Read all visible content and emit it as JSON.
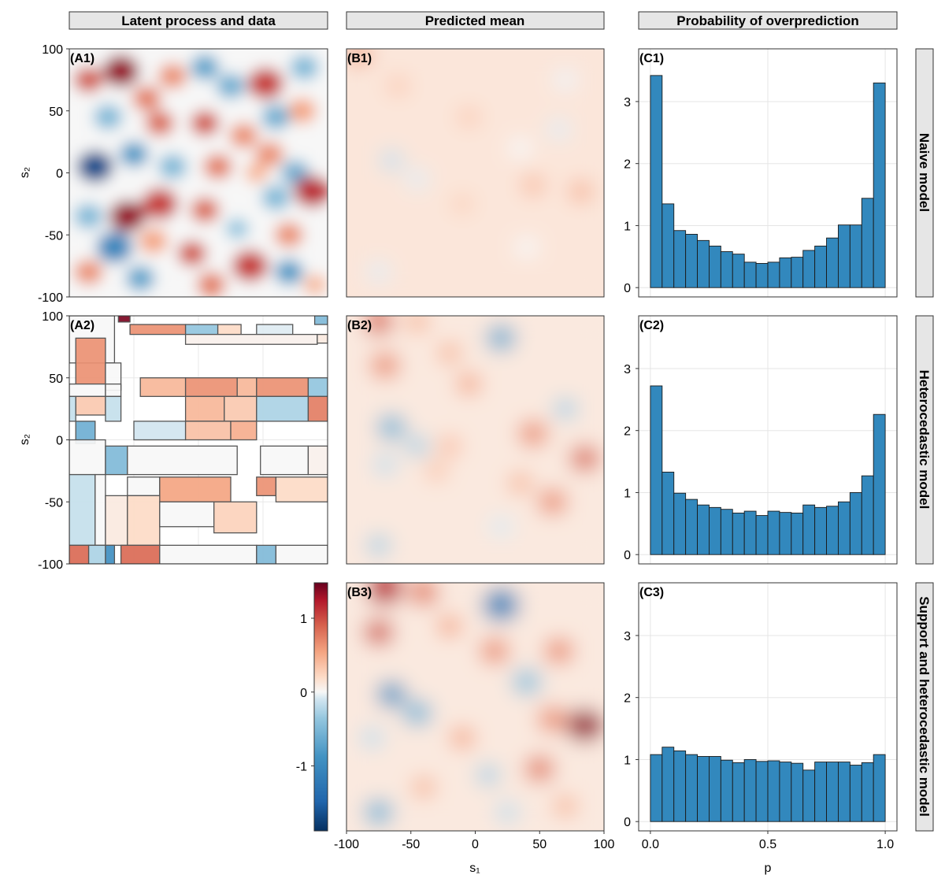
{
  "strip_titles": {
    "col1": "Latent process and data",
    "col2": "Predicted mean",
    "col3": "Probability of overprediction"
  },
  "row_titles": {
    "row1": "Naive model",
    "row2": "Heterocedastic model",
    "row3": "Support and heterocedastic model"
  },
  "panel_labels": {
    "A1": "(A1)",
    "A2": "(A2)",
    "B1": "(B1)",
    "B2": "(B2)",
    "B3": "(B3)",
    "C1": "(C1)",
    "C2": "(C2)",
    "C3": "(C3)"
  },
  "axes": {
    "s1_label": "s₁",
    "s2_label": "s₂",
    "p_label": "p",
    "spatial_ticks": [
      "-100",
      "-50",
      "0",
      "50",
      "100"
    ],
    "spatial_tick_values": [
      -100,
      -50,
      0,
      50,
      100
    ],
    "hist_y_ticks": [
      "0",
      "1",
      "2",
      "3"
    ],
    "hist_y_tick_values": [
      0,
      1,
      2,
      3
    ],
    "hist_x_ticks": [
      "0.0",
      "0.5",
      "1.0"
    ],
    "hist_x_tick_values": [
      0,
      0.5,
      1.0
    ]
  },
  "colorbar": {
    "ticks": [
      "1",
      "0",
      "-1"
    ],
    "tick_values": [
      1,
      0,
      -1
    ],
    "range": [
      -1.88,
      1.48
    ],
    "colors": {
      "neg": "#053061",
      "mid": "#f7f7f7",
      "pos": "#67001f"
    }
  },
  "colors": {
    "bar_fill": "#3288bd",
    "bar_stroke": "#1a1a1a",
    "strip_fill": "#e6e6e6"
  },
  "chart_data": [
    {
      "type": "heatmap",
      "panel": "A1",
      "title": "Latent process and data",
      "xlabel": "",
      "ylabel": "s₂",
      "xlim": [
        -100,
        100
      ],
      "ylim": [
        -100,
        100
      ],
      "colormap": "RdBu (reversed)",
      "clim": [
        -1.88,
        1.48
      ],
      "blobs": [
        {
          "x": -60,
          "y": 82,
          "v": 1.3
        },
        {
          "x": -85,
          "y": 75,
          "v": 0.9
        },
        {
          "x": -40,
          "y": 60,
          "v": 0.7
        },
        {
          "x": -20,
          "y": 78,
          "v": 0.6
        },
        {
          "x": 5,
          "y": 85,
          "v": -0.7
        },
        {
          "x": 25,
          "y": 70,
          "v": -0.6
        },
        {
          "x": 52,
          "y": 72,
          "v": 1.0
        },
        {
          "x": 82,
          "y": 85,
          "v": -0.5
        },
        {
          "x": 80,
          "y": 50,
          "v": 0.5
        },
        {
          "x": 60,
          "y": 45,
          "v": -0.6
        },
        {
          "x": -30,
          "y": 40,
          "v": 0.8
        },
        {
          "x": -70,
          "y": 45,
          "v": -0.5
        },
        {
          "x": 5,
          "y": 40,
          "v": 0.9
        },
        {
          "x": 35,
          "y": 30,
          "v": 0.6
        },
        {
          "x": -80,
          "y": 5,
          "v": -1.6
        },
        {
          "x": -50,
          "y": 15,
          "v": -0.8
        },
        {
          "x": -20,
          "y": 5,
          "v": -0.5
        },
        {
          "x": 15,
          "y": 5,
          "v": 0.7
        },
        {
          "x": 55,
          "y": 15,
          "v": 0.6
        },
        {
          "x": 75,
          "y": 0,
          "v": -0.6
        },
        {
          "x": 88,
          "y": -15,
          "v": 1.1
        },
        {
          "x": 60,
          "y": -20,
          "v": -0.5
        },
        {
          "x": -55,
          "y": -35,
          "v": 1.3
        },
        {
          "x": -30,
          "y": -25,
          "v": 1.0
        },
        {
          "x": -85,
          "y": -35,
          "v": -0.5
        },
        {
          "x": 5,
          "y": -30,
          "v": 0.8
        },
        {
          "x": 30,
          "y": -45,
          "v": -0.4
        },
        {
          "x": 70,
          "y": -50,
          "v": 0.6
        },
        {
          "x": -65,
          "y": -60,
          "v": -1.0
        },
        {
          "x": -35,
          "y": -55,
          "v": 0.5
        },
        {
          "x": -5,
          "y": -65,
          "v": 0.9
        },
        {
          "x": 40,
          "y": -75,
          "v": 1.0
        },
        {
          "x": 70,
          "y": -80,
          "v": -0.8
        },
        {
          "x": -85,
          "y": -80,
          "v": 0.6
        },
        {
          "x": -45,
          "y": -85,
          "v": -0.7
        },
        {
          "x": 10,
          "y": -90,
          "v": 0.7
        },
        {
          "x": 90,
          "y": -90,
          "v": 0.4
        },
        {
          "x": 45,
          "y": 0,
          "v": 0.4
        }
      ]
    },
    {
      "type": "heatmap",
      "panel": "A2",
      "title": "",
      "xlabel": "",
      "ylabel": "s₂",
      "xlim": [
        -100,
        100
      ],
      "ylim": [
        -100,
        100
      ],
      "description_values": "areal observations on rectangles (x1,y1,x2,y2,value)",
      "rects": [
        [
          -100,
          62,
          -65,
          100,
          0.0
        ],
        [
          -62,
          95,
          -53,
          100,
          1.4
        ],
        [
          -53,
          85,
          -10,
          93,
          0.6
        ],
        [
          -10,
          85,
          15,
          93,
          -0.4
        ],
        [
          15,
          85,
          33,
          93,
          0.2
        ],
        [
          45,
          85,
          73,
          93,
          -0.1
        ],
        [
          90,
          93,
          100,
          100,
          -0.5
        ],
        [
          -10,
          77,
          92,
          85,
          0.05
        ],
        [
          92,
          78,
          100,
          85,
          0.1
        ],
        [
          -95,
          45,
          -72,
          82,
          0.6
        ],
        [
          -72,
          40,
          -60,
          62,
          0.0
        ],
        [
          -100,
          35,
          -72,
          45,
          0.0
        ],
        [
          -72,
          35,
          -60,
          45,
          0.0
        ],
        [
          -95,
          20,
          -72,
          35,
          0.3
        ],
        [
          -100,
          15,
          -95,
          35,
          -0.2
        ],
        [
          -72,
          15,
          -60,
          35,
          -0.2
        ],
        [
          -45,
          35,
          -10,
          50,
          0.4
        ],
        [
          -10,
          35,
          30,
          50,
          0.6
        ],
        [
          30,
          35,
          45,
          50,
          0.4
        ],
        [
          45,
          35,
          85,
          50,
          0.6
        ],
        [
          85,
          35,
          100,
          50,
          -0.4
        ],
        [
          -10,
          15,
          20,
          35,
          0.4
        ],
        [
          20,
          15,
          45,
          35,
          0.3
        ],
        [
          45,
          15,
          85,
          35,
          -0.3
        ],
        [
          85,
          15,
          100,
          35,
          0.7
        ],
        [
          -50,
          0,
          -10,
          15,
          -0.15
        ],
        [
          -10,
          0,
          25,
          15,
          0.35
        ],
        [
          25,
          0,
          45,
          15,
          0.45
        ],
        [
          -95,
          -3,
          -80,
          15,
          -0.6
        ],
        [
          -100,
          -28,
          -72,
          0,
          0.0
        ],
        [
          -72,
          -28,
          -55,
          -5,
          -0.5
        ],
        [
          -55,
          -28,
          30,
          -5,
          0.0
        ],
        [
          48,
          -28,
          85,
          -5,
          0.0
        ],
        [
          85,
          -28,
          100,
          -5,
          0.05
        ],
        [
          -100,
          -85,
          -80,
          -28,
          -0.2
        ],
        [
          -80,
          -85,
          -72,
          -28,
          0.0
        ],
        [
          -72,
          -85,
          -55,
          -45,
          0.1
        ],
        [
          -55,
          -45,
          -30,
          -30,
          0.0
        ],
        [
          -30,
          -50,
          25,
          -30,
          0.5
        ],
        [
          -55,
          -85,
          -30,
          -45,
          0.2
        ],
        [
          -30,
          -70,
          12,
          -50,
          0.0
        ],
        [
          12,
          -75,
          45,
          -50,
          0.25
        ],
        [
          45,
          -45,
          60,
          -30,
          0.6
        ],
        [
          60,
          -50,
          100,
          -30,
          0.2
        ],
        [
          -100,
          -100,
          -85,
          -85,
          0.8
        ],
        [
          -85,
          -100,
          -72,
          -85,
          -0.3
        ],
        [
          -72,
          -100,
          -65,
          -85,
          -0.9
        ],
        [
          -60,
          -100,
          -30,
          -85,
          0.8
        ],
        [
          -30,
          -100,
          45,
          -85,
          0.0
        ],
        [
          45,
          -100,
          60,
          -85,
          -0.5
        ],
        [
          60,
          -100,
          100,
          -85,
          0.0
        ]
      ]
    },
    {
      "type": "heatmap",
      "panel": "B1",
      "title": "Predicted mean",
      "xlim": [
        -100,
        100
      ],
      "ylim": [
        -100,
        100
      ],
      "base": 0.12,
      "blobs": [
        {
          "x": -90,
          "y": 95,
          "v": 0.4
        },
        {
          "x": -60,
          "y": 70,
          "v": 0.15
        },
        {
          "x": -5,
          "y": 45,
          "v": 0.15
        },
        {
          "x": -65,
          "y": 10,
          "v": -0.3
        },
        {
          "x": -45,
          "y": -5,
          "v": -0.2
        },
        {
          "x": -10,
          "y": -25,
          "v": 0.12
        },
        {
          "x": 35,
          "y": 20,
          "v": -0.12
        },
        {
          "x": 45,
          "y": -10,
          "v": 0.25
        },
        {
          "x": 65,
          "y": 35,
          "v": -0.2
        },
        {
          "x": 82,
          "y": -15,
          "v": 0.3
        },
        {
          "x": 40,
          "y": -60,
          "v": -0.12
        },
        {
          "x": -75,
          "y": -80,
          "v": -0.2
        },
        {
          "x": 70,
          "y": 75,
          "v": -0.15
        }
      ]
    },
    {
      "type": "heatmap",
      "panel": "B2",
      "title": "",
      "xlim": [
        -100,
        100
      ],
      "ylim": [
        -100,
        100
      ],
      "base": 0.1,
      "blobs": [
        {
          "x": -75,
          "y": 95,
          "v": 0.7
        },
        {
          "x": -45,
          "y": 95,
          "v": 0.3
        },
        {
          "x": 20,
          "y": 82,
          "v": -0.7
        },
        {
          "x": -70,
          "y": 60,
          "v": 0.5
        },
        {
          "x": -5,
          "y": 45,
          "v": 0.4
        },
        {
          "x": -20,
          "y": 70,
          "v": 0.3
        },
        {
          "x": -65,
          "y": 10,
          "v": -0.6
        },
        {
          "x": -45,
          "y": -5,
          "v": -0.4
        },
        {
          "x": -70,
          "y": -20,
          "v": -0.3
        },
        {
          "x": -20,
          "y": -5,
          "v": 0.25
        },
        {
          "x": 45,
          "y": 5,
          "v": 0.5
        },
        {
          "x": 70,
          "y": 25,
          "v": -0.4
        },
        {
          "x": 85,
          "y": -15,
          "v": 0.7
        },
        {
          "x": 60,
          "y": -50,
          "v": 0.5
        },
        {
          "x": 35,
          "y": -35,
          "v": 0.3
        },
        {
          "x": -75,
          "y": -85,
          "v": -0.4
        },
        {
          "x": 20,
          "y": -70,
          "v": -0.2
        },
        {
          "x": -30,
          "y": -25,
          "v": 0.2
        }
      ]
    },
    {
      "type": "heatmap",
      "panel": "B3",
      "title": "",
      "xlabel": "s₁",
      "xlim": [
        -100,
        100
      ],
      "ylim": [
        -100,
        100
      ],
      "base": 0.1,
      "blobs": [
        {
          "x": -70,
          "y": 95,
          "v": 1.0
        },
        {
          "x": -40,
          "y": 92,
          "v": 0.6
        },
        {
          "x": 20,
          "y": 82,
          "v": -1.1
        },
        {
          "x": -75,
          "y": 60,
          "v": 0.8
        },
        {
          "x": -20,
          "y": 65,
          "v": 0.4
        },
        {
          "x": 15,
          "y": 45,
          "v": 0.5
        },
        {
          "x": 65,
          "y": 45,
          "v": 0.5
        },
        {
          "x": 40,
          "y": 20,
          "v": -0.5
        },
        {
          "x": -65,
          "y": 10,
          "v": -0.9
        },
        {
          "x": -45,
          "y": -5,
          "v": -0.6
        },
        {
          "x": -80,
          "y": -25,
          "v": -0.3
        },
        {
          "x": -10,
          "y": -25,
          "v": 0.4
        },
        {
          "x": 85,
          "y": -15,
          "v": 1.2
        },
        {
          "x": 60,
          "y": -10,
          "v": 0.5
        },
        {
          "x": 50,
          "y": -50,
          "v": 0.6
        },
        {
          "x": 10,
          "y": -55,
          "v": -0.4
        },
        {
          "x": -75,
          "y": -85,
          "v": -0.6
        },
        {
          "x": 25,
          "y": -85,
          "v": -0.3
        },
        {
          "x": 70,
          "y": -80,
          "v": 0.3
        },
        {
          "x": -40,
          "y": -65,
          "v": 0.3
        }
      ]
    },
    {
      "type": "bar",
      "panel": "C1",
      "title": "Probability of overprediction",
      "xlim": [
        -0.05,
        1.05
      ],
      "ylim": [
        -0.15,
        3.85
      ],
      "bin_width": 0.05,
      "bin_starts": [
        0,
        0.05,
        0.1,
        0.15,
        0.2,
        0.25,
        0.3,
        0.35,
        0.4,
        0.45,
        0.5,
        0.55,
        0.6,
        0.65,
        0.7,
        0.75,
        0.8,
        0.85,
        0.9,
        0.95
      ],
      "values": [
        3.42,
        1.35,
        0.92,
        0.86,
        0.76,
        0.67,
        0.58,
        0.54,
        0.41,
        0.39,
        0.41,
        0.48,
        0.49,
        0.6,
        0.67,
        0.8,
        1.01,
        1.01,
        1.44,
        3.3
      ]
    },
    {
      "type": "bar",
      "panel": "C2",
      "title": "",
      "xlim": [
        -0.05,
        1.05
      ],
      "ylim": [
        -0.15,
        3.85
      ],
      "bin_width": 0.05,
      "bin_starts": [
        0,
        0.05,
        0.1,
        0.15,
        0.2,
        0.25,
        0.3,
        0.35,
        0.4,
        0.45,
        0.5,
        0.55,
        0.6,
        0.65,
        0.7,
        0.75,
        0.8,
        0.85,
        0.9,
        0.95
      ],
      "values": [
        2.72,
        1.33,
        0.99,
        0.89,
        0.8,
        0.76,
        0.73,
        0.67,
        0.7,
        0.63,
        0.7,
        0.68,
        0.67,
        0.8,
        0.76,
        0.78,
        0.85,
        1.0,
        1.27,
        2.26
      ]
    },
    {
      "type": "bar",
      "panel": "C3",
      "title": "",
      "xlabel": "p",
      "xlim": [
        -0.05,
        1.05
      ],
      "ylim": [
        -0.15,
        3.85
      ],
      "bin_width": 0.05,
      "bin_starts": [
        0,
        0.05,
        0.1,
        0.15,
        0.2,
        0.25,
        0.3,
        0.35,
        0.4,
        0.45,
        0.5,
        0.55,
        0.6,
        0.65,
        0.7,
        0.75,
        0.8,
        0.85,
        0.9,
        0.95
      ],
      "values": [
        1.08,
        1.2,
        1.14,
        1.08,
        1.05,
        1.05,
        0.99,
        0.95,
        1.0,
        0.97,
        0.98,
        0.96,
        0.94,
        0.83,
        0.96,
        0.96,
        0.96,
        0.91,
        0.95,
        1.08
      ]
    }
  ]
}
